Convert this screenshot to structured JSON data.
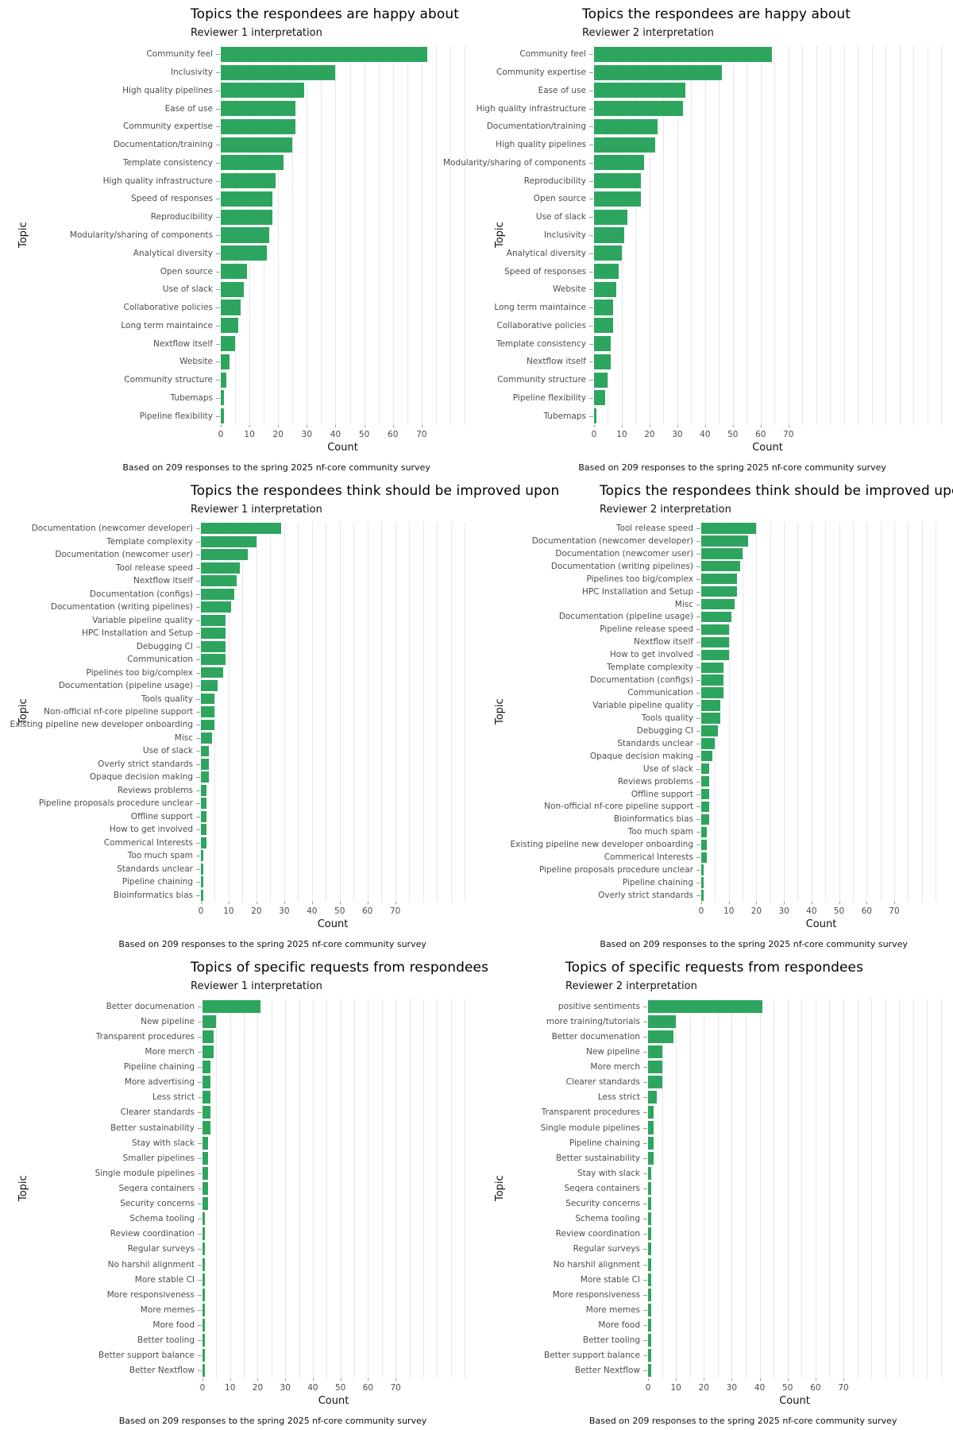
{
  "page": {
    "bar_color": "#2da55f",
    "grid_color": "#e7e7e7",
    "caption": "Based on 209 responses to the spring 2025 nf-core community survey"
  },
  "chart_data": [
    {
      "type": "bar",
      "orientation": "horizontal",
      "title": "Topics the respondees are happy about",
      "subtitle": "Reviewer 1 interpretation",
      "xlabel": "Count",
      "ylabel": "Topic",
      "caption": "Based on 209 responses to the spring 2025 nf-core community survey",
      "x_ticks": [
        0,
        10,
        20,
        30,
        40,
        50,
        60,
        70
      ],
      "xlim": [
        0,
        85
      ],
      "grid": "on",
      "categories": [
        "Community feel",
        "Inclusivity",
        "High quality pipelines",
        "Ease of use",
        "Community expertise",
        "Documentation/training",
        "Template consistency",
        "High quality infrastructure",
        "Speed of responses",
        "Reproducibility",
        "Modularity/sharing of components",
        "Analytical diversity",
        "Open source",
        "Use of slack",
        "Collaborative policies",
        "Long term maintaince",
        "Nextflow itself",
        "Website",
        "Community structure",
        "Tubemaps",
        "Pipeline flexibility"
      ],
      "values": [
        72,
        40,
        29,
        26,
        26,
        25,
        22,
        19,
        18,
        18,
        17,
        16,
        9,
        8,
        7,
        6,
        5,
        3,
        2,
        1,
        1
      ]
    },
    {
      "type": "bar",
      "orientation": "horizontal",
      "title": "Topics the respondees are happy about",
      "subtitle": "Reviewer 2 interpretation",
      "xlabel": "Count",
      "ylabel": "Topic",
      "caption": "Based on 209 responses to the spring 2025 nf-core community survey",
      "x_ticks": [
        0,
        10,
        20,
        30,
        40,
        50,
        60,
        70
      ],
      "xlim": [
        0,
        125
      ],
      "grid": "on",
      "categories": [
        "Community feel",
        "Community expertise",
        "Ease of use",
        "High quality infrastructure",
        "Documentation/training",
        "High quality pipelines",
        "Modularity/sharing of components",
        "Reproducibility",
        "Open source",
        "Use of slack",
        "Inclusivity",
        "Analytical diversity",
        "Speed of responses",
        "Website",
        "Long term maintaince",
        "Collaborative policies",
        "Template consistency",
        "Nextflow itself",
        "Community structure",
        "Pipeline flexibility",
        "Tubemaps"
      ],
      "values": [
        64,
        46,
        33,
        32,
        23,
        22,
        18,
        17,
        17,
        12,
        11,
        10,
        9,
        8,
        7,
        7,
        6,
        6,
        5,
        4,
        1
      ]
    },
    {
      "type": "bar",
      "orientation": "horizontal",
      "title": "Topics the respondees think should be improved upon",
      "subtitle": "Reviewer 1 interpretation",
      "xlabel": "Count",
      "ylabel": "Topic",
      "caption": "Based on 209 responses to the spring 2025 nf-core community survey",
      "x_ticks": [
        0,
        10,
        20,
        30,
        40,
        50,
        60,
        70
      ],
      "xlim": [
        0,
        95
      ],
      "grid": "on",
      "categories": [
        "Documentation (newcomer developer)",
        "Template complexity",
        "Documentation (newcomer user)",
        "Tool release speed",
        "Nextflow itself",
        "Documentation (configs)",
        "Documentation (writing pipelines)",
        "Variable pipeline quality",
        "HPC Installation and Setup",
        "Debugging CI",
        "Communication",
        "Pipelines too big/complex",
        "Documentation (pipeline usage)",
        "Tools quality",
        "Non-official nf-core pipeline support",
        "Existing pipeline new developer onboarding",
        "Misc",
        "Use of slack",
        "Overly strict standards",
        "Opaque decision making",
        "Reviews problems",
        "Pipeline proposals procedure unclear",
        "Offline support",
        "How to get involved",
        "Commerical Interests",
        "Too much spam",
        "Standards unclear",
        "Pipeline chaining",
        "Bioinformatics bias"
      ],
      "values": [
        29,
        20,
        17,
        14,
        13,
        12,
        11,
        9,
        9,
        9,
        9,
        8,
        6,
        5,
        5,
        5,
        4,
        3,
        3,
        3,
        2,
        2,
        2,
        2,
        2,
        1,
        1,
        1,
        1
      ]
    },
    {
      "type": "bar",
      "orientation": "horizontal",
      "title": "Topics the respondees think should be improved upon",
      "subtitle": "Reviewer 2 interpretation",
      "xlabel": "Count",
      "ylabel": "Topic",
      "caption": "Based on 209 responses to the spring 2025 nf-core community survey",
      "x_ticks": [
        0,
        10,
        20,
        30,
        40,
        50,
        60,
        70
      ],
      "xlim": [
        0,
        87
      ],
      "grid": "on",
      "categories": [
        "Tool release speed",
        "Documentation (newcomer developer)",
        "Documentation (newcomer user)",
        "Documentation (writing pipelines)",
        "Pipelines too big/complex",
        "HPC Installation and Setup",
        "Misc",
        "Documentation (pipeline usage)",
        "Pipeline release speed",
        "Nextflow itself",
        "How to get involved",
        "Template complexity",
        "Documentation (configs)",
        "Communication",
        "Variable pipeline quality",
        "Tools quality",
        "Debugging CI",
        "Standards unclear",
        "Opaque decision making",
        "Use of slack",
        "Reviews problems",
        "Offline support",
        "Non-official nf-core pipeline support",
        "Bioinformatics bias",
        "Too much spam",
        "Existing pipeline new developer onboarding",
        "Commerical Interests",
        "Pipeline proposals procedure unclear",
        "Pipeline chaining",
        "Overly strict standards"
      ],
      "values": [
        20,
        17,
        15,
        14,
        13,
        13,
        12,
        11,
        10,
        10,
        10,
        8,
        8,
        8,
        7,
        7,
        6,
        5,
        4,
        3,
        3,
        3,
        3,
        3,
        2,
        2,
        2,
        1,
        1,
        1
      ]
    },
    {
      "type": "bar",
      "orientation": "horizontal",
      "title": "Topics of specific requests from respondees",
      "subtitle": "Reviewer 1 interpretation",
      "xlabel": "Count",
      "ylabel": "Topic",
      "caption": "Based on 209 responses to the spring 2025 nf-core community survey",
      "x_ticks": [
        0,
        10,
        20,
        30,
        40,
        50,
        60,
        70
      ],
      "xlim": [
        0,
        95
      ],
      "grid": "on",
      "categories": [
        "Better documenation",
        "New pipeline",
        "Transparent procedures",
        "More merch",
        "Pipeline chaining",
        "More advertising",
        "Less strict",
        "Clearer standards",
        "Better sustainability",
        "Stay with slack",
        "Smaller pipelines",
        "Single module pipelines",
        "Seqera containers",
        "Security concerns",
        "Schema tooling",
        "Review coordination",
        "Regular surveys",
        "No harshil alignment",
        "More stable CI",
        "More responsiveness",
        "More memes",
        "More food",
        "Better tooling",
        "Better support balance",
        "Better Nextflow"
      ],
      "values": [
        21,
        5,
        4,
        4,
        3,
        3,
        3,
        3,
        3,
        2,
        2,
        2,
        2,
        2,
        1,
        1,
        1,
        1,
        1,
        1,
        1,
        1,
        1,
        1,
        1
      ]
    },
    {
      "type": "bar",
      "orientation": "horizontal",
      "title": "Topics of specific requests from respondees",
      "subtitle": "Reviewer 2 interpretation",
      "xlabel": "Count",
      "ylabel": "Topic",
      "caption": "Based on 209 responses to the spring 2025 nf-core community survey",
      "x_ticks": [
        0,
        10,
        20,
        30,
        40,
        50,
        60,
        70
      ],
      "xlim": [
        0,
        105
      ],
      "grid": "on",
      "categories": [
        "positive sentiments",
        "more training/tutorials",
        "Better documenation",
        "New pipeline",
        "More merch",
        "Clearer standards",
        "Less strict",
        "Transparent procedures",
        "Single module pipelines",
        "Pipeline chaining",
        "Better sustainability",
        "Stay with slack",
        "Seqera containers",
        "Security concerns",
        "Schema tooling",
        "Review coordination",
        "Regular surveys",
        "No harshil alignment",
        "More stable CI",
        "More responsiveness",
        "More memes",
        "More food",
        "Better tooling",
        "Better support balance",
        "Better Nextflow"
      ],
      "values": [
        41,
        10,
        9,
        5,
        5,
        5,
        3,
        2,
        2,
        2,
        2,
        1,
        1,
        1,
        1,
        1,
        1,
        1,
        1,
        1,
        1,
        1,
        1,
        1,
        1
      ]
    }
  ]
}
